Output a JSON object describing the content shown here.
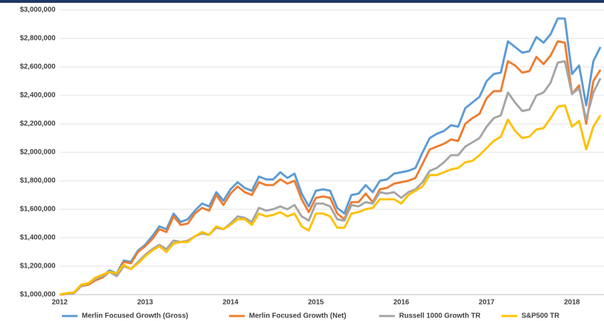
{
  "chart_data": {
    "type": "line",
    "categories": [
      "2012",
      null,
      null,
      null,
      null,
      null,
      null,
      null,
      null,
      null,
      null,
      null,
      "2013",
      null,
      null,
      null,
      null,
      null,
      null,
      null,
      null,
      null,
      null,
      null,
      "2014",
      null,
      null,
      null,
      null,
      null,
      null,
      null,
      null,
      null,
      null,
      null,
      "2015",
      null,
      null,
      null,
      null,
      null,
      null,
      null,
      null,
      null,
      null,
      null,
      "2016",
      null,
      null,
      null,
      null,
      null,
      null,
      null,
      null,
      null,
      null,
      null,
      "2017",
      null,
      null,
      null,
      null,
      null,
      null,
      null,
      null,
      null,
      null,
      null,
      "2018",
      null,
      null,
      null,
      null
    ],
    "series": [
      {
        "name": "Merlin Focused Growth (Gross)",
        "color": "#5b9bd5",
        "values": [
          1000000,
          1010000,
          1015000,
          1060000,
          1080000,
          1110000,
          1130000,
          1170000,
          1150000,
          1240000,
          1230000,
          1310000,
          1350000,
          1410000,
          1480000,
          1460000,
          1570000,
          1510000,
          1530000,
          1590000,
          1640000,
          1620000,
          1720000,
          1660000,
          1740000,
          1790000,
          1750000,
          1730000,
          1830000,
          1810000,
          1810000,
          1860000,
          1820000,
          1850000,
          1710000,
          1620000,
          1730000,
          1740000,
          1730000,
          1610000,
          1570000,
          1700000,
          1710000,
          1770000,
          1720000,
          1800000,
          1810000,
          1850000,
          1860000,
          1870000,
          1890000,
          2000000,
          2100000,
          2130000,
          2150000,
          2190000,
          2180000,
          2310000,
          2350000,
          2390000,
          2500000,
          2550000,
          2560000,
          2780000,
          2740000,
          2700000,
          2710000,
          2810000,
          2770000,
          2830000,
          2940000,
          2940000,
          2550000,
          2610000,
          2330000,
          2640000,
          2740000
        ]
      },
      {
        "name": "Merlin Focused Growth (Net)",
        "color": "#ed7d31",
        "values": [
          1000000,
          1005000,
          1010000,
          1060000,
          1070000,
          1100000,
          1120000,
          1160000,
          1140000,
          1230000,
          1220000,
          1300000,
          1340000,
          1390000,
          1460000,
          1440000,
          1550000,
          1490000,
          1500000,
          1570000,
          1610000,
          1590000,
          1700000,
          1630000,
          1710000,
          1760000,
          1720000,
          1700000,
          1790000,
          1770000,
          1770000,
          1810000,
          1780000,
          1800000,
          1670000,
          1580000,
          1680000,
          1690000,
          1680000,
          1570000,
          1530000,
          1650000,
          1650000,
          1710000,
          1650000,
          1740000,
          1750000,
          1780000,
          1790000,
          1800000,
          1820000,
          1920000,
          2020000,
          2040000,
          2060000,
          2090000,
          2080000,
          2200000,
          2240000,
          2270000,
          2380000,
          2430000,
          2430000,
          2640000,
          2610000,
          2560000,
          2570000,
          2670000,
          2620000,
          2680000,
          2780000,
          2770000,
          2410000,
          2470000,
          2200000,
          2500000,
          2580000
        ]
      },
      {
        "name": "Russell 1000 Growth TR",
        "color": "#a5a5a5",
        "values": [
          1000000,
          1005000,
          1010000,
          1060000,
          1080000,
          1110000,
          1130000,
          1160000,
          1130000,
          1200000,
          1180000,
          1230000,
          1280000,
          1320000,
          1350000,
          1320000,
          1380000,
          1370000,
          1380000,
          1410000,
          1430000,
          1420000,
          1470000,
          1460000,
          1500000,
          1550000,
          1540000,
          1510000,
          1610000,
          1590000,
          1600000,
          1620000,
          1600000,
          1630000,
          1550000,
          1520000,
          1640000,
          1640000,
          1620000,
          1530000,
          1520000,
          1630000,
          1620000,
          1650000,
          1640000,
          1720000,
          1710000,
          1720000,
          1680000,
          1720000,
          1740000,
          1790000,
          1870000,
          1890000,
          1930000,
          1980000,
          1980000,
          2040000,
          2070000,
          2100000,
          2180000,
          2240000,
          2260000,
          2420000,
          2350000,
          2290000,
          2300000,
          2400000,
          2420000,
          2490000,
          2630000,
          2640000,
          2410000,
          2450000,
          2230000,
          2420000,
          2520000
        ]
      },
      {
        "name": "S&P500 TR",
        "color": "#ffc000",
        "values": [
          1000000,
          1010000,
          1015000,
          1070000,
          1080000,
          1120000,
          1140000,
          1160000,
          1150000,
          1210000,
          1180000,
          1220000,
          1270000,
          1310000,
          1340000,
          1300000,
          1360000,
          1370000,
          1370000,
          1410000,
          1440000,
          1420000,
          1480000,
          1460000,
          1490000,
          1530000,
          1530000,
          1490000,
          1570000,
          1550000,
          1560000,
          1580000,
          1550000,
          1570000,
          1480000,
          1450000,
          1570000,
          1570000,
          1550000,
          1470000,
          1470000,
          1570000,
          1580000,
          1600000,
          1610000,
          1670000,
          1670000,
          1670000,
          1640000,
          1700000,
          1730000,
          1760000,
          1840000,
          1840000,
          1860000,
          1880000,
          1890000,
          1930000,
          1940000,
          1980000,
          2030000,
          2080000,
          2110000,
          2230000,
          2150000,
          2100000,
          2110000,
          2160000,
          2170000,
          2240000,
          2320000,
          2330000,
          2180000,
          2220000,
          2020000,
          2180000,
          2260000
        ]
      }
    ],
    "ylim": [
      1000000,
      3000000
    ],
    "yticks": [
      {
        "value": 1000000,
        "label": "$1,000,000"
      },
      {
        "value": 1200000,
        "label": "$1,200,000"
      },
      {
        "value": 1400000,
        "label": "$1,400,000"
      },
      {
        "value": 1600000,
        "label": "$1,600,000"
      },
      {
        "value": 1800000,
        "label": "$1,800,000"
      },
      {
        "value": 2000000,
        "label": "$2,000,000"
      },
      {
        "value": 2200000,
        "label": "$2,200,000"
      },
      {
        "value": 2400000,
        "label": "$2,400,000"
      },
      {
        "value": 2600000,
        "label": "$2,600,000"
      },
      {
        "value": 2800000,
        "label": "$2,800,000"
      },
      {
        "value": 3000000,
        "label": "$3,000,000"
      }
    ],
    "grid": true,
    "legend": "bottom"
  }
}
